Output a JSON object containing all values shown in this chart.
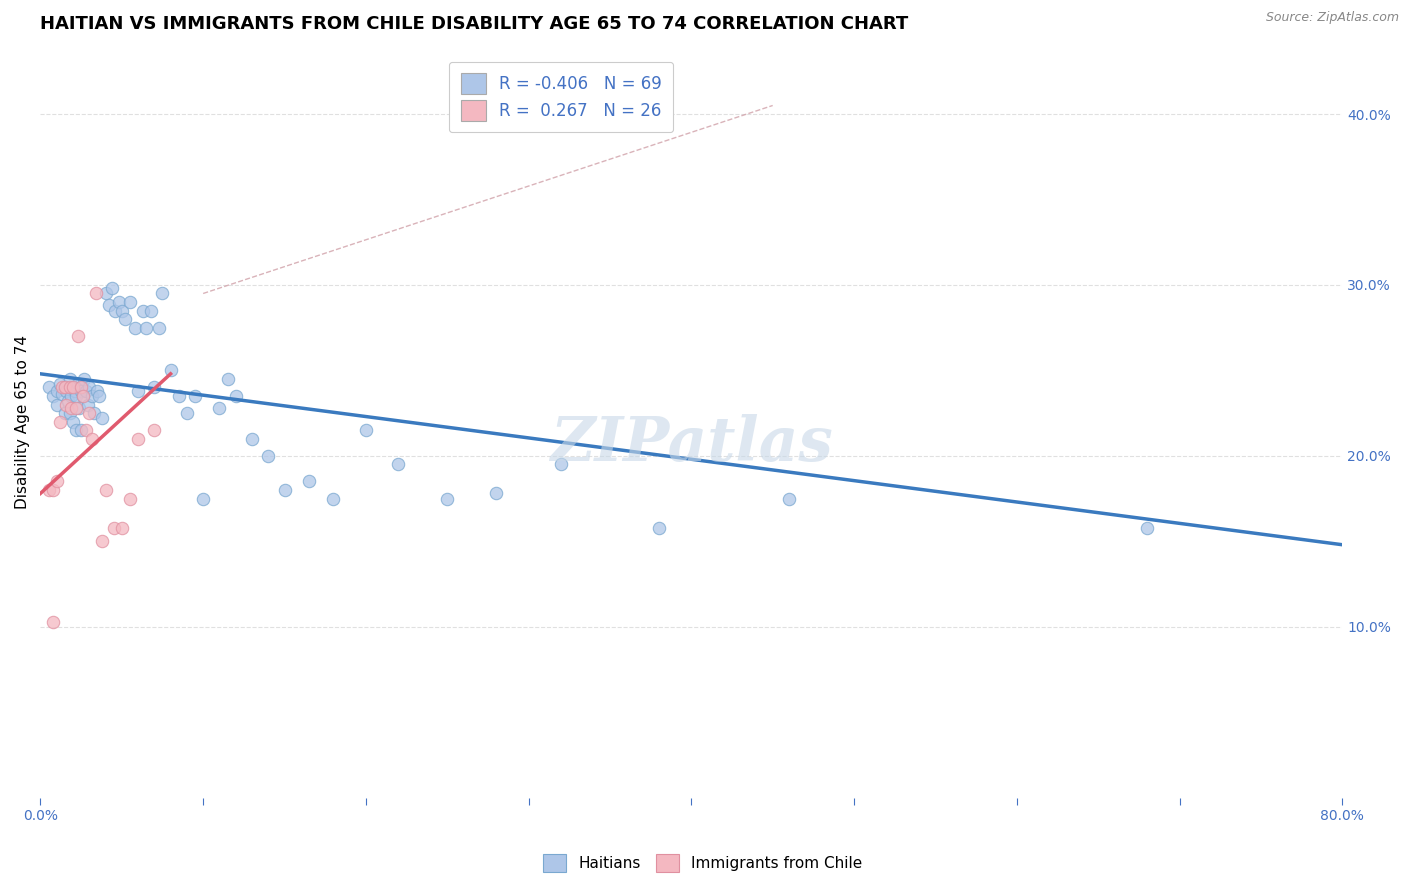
{
  "title": "HAITIAN VS IMMIGRANTS FROM CHILE DISABILITY AGE 65 TO 74 CORRELATION CHART",
  "source": "Source: ZipAtlas.com",
  "ylabel": "Disability Age 65 to 74",
  "xmin": 0.0,
  "xmax": 0.8,
  "ymin": 0.0,
  "ymax": 0.44,
  "xtick_positions": [
    0.0,
    0.1,
    0.2,
    0.3,
    0.4,
    0.5,
    0.6,
    0.7,
    0.8
  ],
  "xtick_labels": [
    "0.0%",
    "",
    "",
    "",
    "",
    "",
    "",
    "",
    "80.0%"
  ],
  "ytick_positions": [
    0.1,
    0.2,
    0.3,
    0.4
  ],
  "ytick_labels": [
    "10.0%",
    "20.0%",
    "30.0%",
    "40.0%"
  ],
  "legend_entries": [
    {
      "label": "R = -0.406   N = 69",
      "color": "#aec6e8"
    },
    {
      "label": "R =  0.267   N = 26",
      "color": "#f4b8c1"
    }
  ],
  "haitians_x": [
    0.005,
    0.008,
    0.01,
    0.01,
    0.012,
    0.013,
    0.015,
    0.015,
    0.016,
    0.017,
    0.018,
    0.018,
    0.019,
    0.02,
    0.02,
    0.021,
    0.022,
    0.022,
    0.023,
    0.024,
    0.025,
    0.025,
    0.026,
    0.027,
    0.028,
    0.029,
    0.03,
    0.032,
    0.033,
    0.035,
    0.036,
    0.038,
    0.04,
    0.042,
    0.044,
    0.046,
    0.048,
    0.05,
    0.052,
    0.055,
    0.058,
    0.06,
    0.063,
    0.065,
    0.068,
    0.07,
    0.073,
    0.075,
    0.08,
    0.085,
    0.09,
    0.095,
    0.1,
    0.11,
    0.115,
    0.12,
    0.13,
    0.14,
    0.15,
    0.165,
    0.18,
    0.2,
    0.22,
    0.25,
    0.28,
    0.32,
    0.38,
    0.46,
    0.68
  ],
  "haitians_y": [
    0.24,
    0.235,
    0.238,
    0.23,
    0.242,
    0.236,
    0.24,
    0.225,
    0.238,
    0.232,
    0.245,
    0.225,
    0.235,
    0.24,
    0.22,
    0.238,
    0.235,
    0.215,
    0.242,
    0.228,
    0.238,
    0.215,
    0.235,
    0.245,
    0.238,
    0.23,
    0.24,
    0.235,
    0.225,
    0.238,
    0.235,
    0.222,
    0.295,
    0.288,
    0.298,
    0.285,
    0.29,
    0.285,
    0.28,
    0.29,
    0.275,
    0.238,
    0.285,
    0.275,
    0.285,
    0.24,
    0.275,
    0.295,
    0.25,
    0.235,
    0.225,
    0.235,
    0.175,
    0.228,
    0.245,
    0.235,
    0.21,
    0.2,
    0.18,
    0.185,
    0.175,
    0.215,
    0.195,
    0.175,
    0.178,
    0.195,
    0.158,
    0.175,
    0.158
  ],
  "chile_x": [
    0.005,
    0.008,
    0.01,
    0.012,
    0.013,
    0.015,
    0.016,
    0.018,
    0.019,
    0.02,
    0.022,
    0.023,
    0.025,
    0.026,
    0.028,
    0.03,
    0.032,
    0.034,
    0.038,
    0.04,
    0.045,
    0.05,
    0.055,
    0.06,
    0.07,
    0.008
  ],
  "chile_y": [
    0.18,
    0.18,
    0.185,
    0.22,
    0.24,
    0.24,
    0.23,
    0.24,
    0.228,
    0.24,
    0.228,
    0.27,
    0.24,
    0.235,
    0.215,
    0.225,
    0.21,
    0.295,
    0.15,
    0.18,
    0.158,
    0.158,
    0.175,
    0.21,
    0.215,
    0.103
  ],
  "blue_line_x": [
    0.0,
    0.8
  ],
  "blue_line_y": [
    0.248,
    0.148
  ],
  "pink_line_x": [
    0.0,
    0.08
  ],
  "pink_line_y": [
    0.178,
    0.248
  ],
  "dashed_line_x": [
    0.1,
    0.45
  ],
  "dashed_line_y": [
    0.295,
    0.405
  ],
  "bg_color": "#ffffff",
  "grid_color": "#dddddd",
  "haitian_dot_color": "#aec6e8",
  "chile_dot_color": "#f4b8c1",
  "haitian_dot_edge": "#7aa8d0",
  "chile_dot_edge": "#e090a0",
  "blue_line_color": "#3a7abf",
  "pink_line_color": "#e05a6e",
  "dashed_line_color": "#d0a0a8",
  "watermark": "ZIPatlas",
  "watermark_color": "#c8d8e8",
  "title_fontsize": 13,
  "axis_label_fontsize": 11,
  "tick_fontsize": 10,
  "dot_size": 80,
  "dot_alpha": 0.75
}
